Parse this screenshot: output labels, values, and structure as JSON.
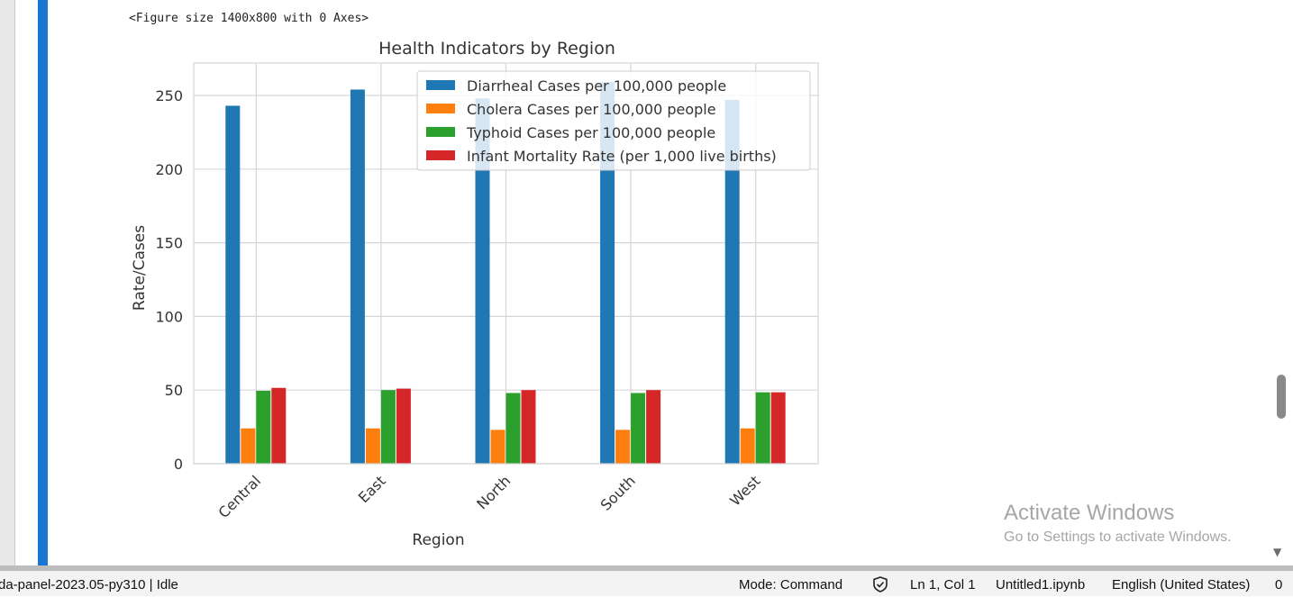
{
  "notebook": {
    "figure_repr": "<Figure size 1400x800 with 0 Axes>"
  },
  "chart_data": {
    "type": "bar",
    "title": "Health Indicators by Region",
    "xlabel": "Region",
    "ylabel": "Rate/Cases",
    "categories": [
      "Central",
      "East",
      "North",
      "South",
      "West"
    ],
    "ylim": [
      0,
      272
    ],
    "yticks": [
      0,
      50,
      100,
      150,
      200,
      250
    ],
    "grid": true,
    "legend_position": "top-right",
    "series": [
      {
        "name": "Diarrheal Cases per 100,000 people",
        "color": "#1f77b4",
        "values": [
          243,
          254,
          248,
          259,
          247
        ]
      },
      {
        "name": "Cholera Cases per 100,000 people",
        "color": "#ff7f0e",
        "values": [
          24,
          24,
          23,
          23,
          24
        ]
      },
      {
        "name": "Typhoid Cases per 100,000 people",
        "color": "#2ca02c",
        "values": [
          49.5,
          50,
          48,
          48,
          48.5
        ]
      },
      {
        "name": "Infant Mortality Rate (per 1,000 live births)",
        "color": "#d62728",
        "values": [
          51.5,
          51,
          50,
          50,
          48.5
        ]
      }
    ]
  },
  "status_bar": {
    "kernel": "da-panel-2023.05-py310 | Idle",
    "mode": "Mode: Command",
    "shield_icon": "shield-check-icon",
    "position": "Ln 1, Col 1",
    "filename": "Untitled1.ipynb",
    "language": "English (United States)",
    "notifications": "0"
  },
  "watermark": {
    "title": "Activate Windows",
    "subtitle": "Go to Settings to activate Windows."
  }
}
